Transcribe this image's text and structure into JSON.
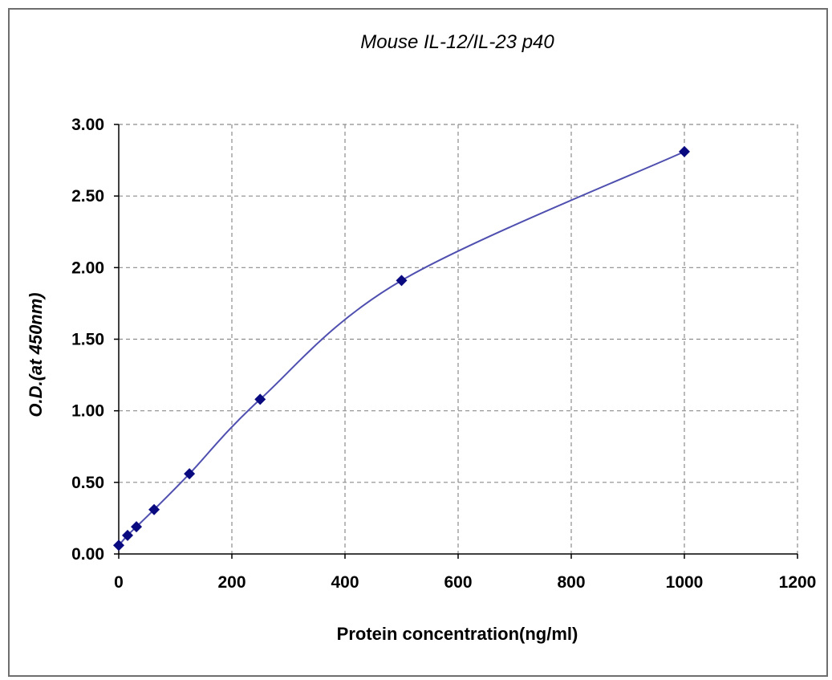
{
  "chart_data": {
    "type": "scatter",
    "title": "Mouse IL-12/IL-23  p40",
    "xlabel": "Protein concentration(ng/ml)",
    "ylabel": "O.D.(at 450nm)",
    "xlim": [
      0,
      1200
    ],
    "ylim": [
      0,
      3
    ],
    "x_ticks": [
      0,
      200,
      400,
      600,
      800,
      1000,
      1200
    ],
    "y_ticks": [
      0,
      0.5,
      1,
      1.5,
      2,
      2.5,
      3
    ],
    "x_tick_labels": [
      "0",
      "200",
      "400",
      "600",
      "800",
      "1000",
      "1200"
    ],
    "y_tick_labels": [
      "0.00",
      "0.50",
      "1.00",
      "1.50",
      "2.00",
      "2.50",
      "3.00"
    ],
    "grid": true,
    "series": [
      {
        "x": [
          0,
          15.6,
          31.25,
          62.5,
          125,
          250,
          500,
          1000
        ],
        "y": [
          0.06,
          0.13,
          0.19,
          0.31,
          0.56,
          1.08,
          1.91,
          2.81
        ],
        "marker": "diamond",
        "color": "#0a0a80",
        "line": "smooth",
        "line_color": "#4f4fb0"
      }
    ]
  }
}
